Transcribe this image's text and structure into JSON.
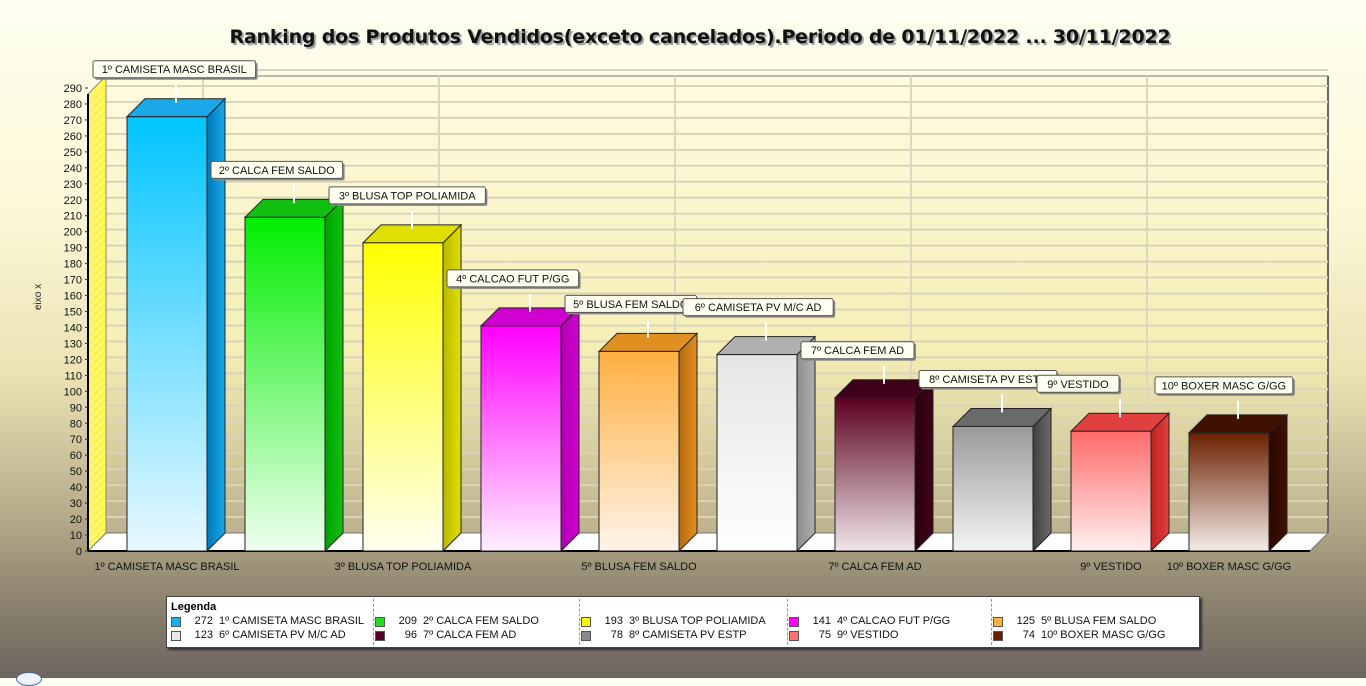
{
  "title": "Ranking dos Produtos Vendidos(exceto cancelados).Periodo de 01/11/2022 ... 30/11/2022",
  "chart_data": {
    "type": "bar",
    "title": "Ranking dos Produtos Vendidos(exceto cancelados).Periodo de 01/11/2022 ... 30/11/2022",
    "xlabel": "",
    "ylabel": "eixo x",
    "ylim": [
      0,
      290
    ],
    "yticks": [
      0,
      10,
      20,
      30,
      40,
      50,
      60,
      70,
      80,
      90,
      100,
      110,
      120,
      130,
      140,
      150,
      160,
      170,
      180,
      190,
      200,
      210,
      220,
      230,
      240,
      250,
      260,
      270,
      280,
      290
    ],
    "grid": true,
    "legend_position": "bottom",
    "categories": [
      "1º CAMISETA MASC BRASIL",
      "2º CALCA FEM SALDO",
      "3º BLUSA TOP POLIAMIDA",
      "4º CALCAO FUT P/GG",
      "5º BLUSA FEM SALDO",
      "6º CAMISETA PV M/C AD",
      "7º CALCA FEM AD",
      "8º CAMISETA PV ESTP",
      "9º VESTIDO",
      "10º BOXER MASC G/GG"
    ],
    "values": [
      272,
      209,
      193,
      141,
      125,
      123,
      96,
      78,
      75,
      74
    ],
    "colors": [
      "#00c0ff",
      "#00e000",
      "#ffff00",
      "#ff00ff",
      "#ffa830",
      "#e0e0e0",
      "#5a0020",
      "#909090",
      "#ff6060",
      "#6a2000"
    ],
    "visible_xtick_labels": [
      "1º CAMISETA MASC BRASIL",
      "3º BLUSA TOP POLIAMIDA",
      "5º BLUSA FEM SALDO",
      "7º CALCA FEM AD",
      "9º VESTIDO",
      "10º BOXER MASC G/GG"
    ]
  },
  "legend": {
    "title": "Legenda",
    "items": [
      {
        "value": "272",
        "label": "1º CAMISETA MASC BRASIL",
        "color": "#1ab0f0"
      },
      {
        "value": "123",
        "label": "6º CAMISETA PV M/C AD",
        "color": "#e8e8e8"
      },
      {
        "value": "209",
        "label": "2º CALCA FEM SALDO",
        "color": "#20e020"
      },
      {
        "value": "96",
        "label": "7º CALCA FEM AD",
        "color": "#5a0028"
      },
      {
        "value": "193",
        "label": "3º BLUSA TOP POLIAMIDA",
        "color": "#ffff00"
      },
      {
        "value": "78",
        "label": "8º CAMISETA PV ESTP",
        "color": "#8a8a8a"
      },
      {
        "value": "141",
        "label": "4º CALCAO FUT P/GG",
        "color": "#ff00ff"
      },
      {
        "value": "75",
        "label": "9º VESTIDO",
        "color": "#ff7070"
      },
      {
        "value": "125",
        "label": "5º BLUSA FEM SALDO",
        "color": "#ffb040"
      },
      {
        "value": "74",
        "label": "10º BOXER MASC G/GG",
        "color": "#6a2000"
      }
    ]
  }
}
